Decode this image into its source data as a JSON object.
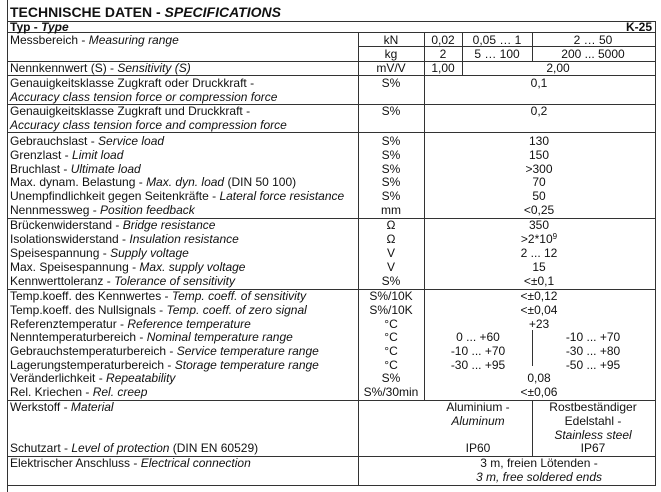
{
  "title": {
    "de": "TECHNISCHE DATEN - ",
    "en": "SPECIFICATIONS"
  },
  "type_row": {
    "de": "Typ - ",
    "en": "Type",
    "model": "K-25"
  },
  "measuring_range": {
    "de": "Messbereich - ",
    "en": "Measuring range",
    "unit_kn": "kN",
    "kn_values": [
      "0,02",
      "0,05 … 1",
      "2 … 50"
    ],
    "unit_kg": "kg",
    "kg_values": [
      "2",
      "5 … 100",
      "200 ... 5000"
    ]
  },
  "sensitivity": {
    "de": "Nennkennwert (S) - ",
    "en": "Sensitivity (S)",
    "unit": "mV/V",
    "values": [
      "1,00",
      "2,00"
    ]
  },
  "accuracy": [
    {
      "de": "Genauigkeitsklasse Zugkraft oder Druckkraft -",
      "en": "Accuracy class tension force or compression force",
      "unit": "S%",
      "value": "0,1"
    },
    {
      "de": "Genauigkeitsklasse Zugkraft und Druckkraft -",
      "en": "Accuracy class tension force and compression force",
      "unit": "S%",
      "value": "0,2"
    }
  ],
  "load_group": [
    {
      "de": "Gebrauchslast - ",
      "en": "Service load",
      "unit": "S%",
      "value": "130"
    },
    {
      "de": "Grenzlast - ",
      "en": "Limit load",
      "unit": "S%",
      "value": "150"
    },
    {
      "de": "Bruchlast - ",
      "en": "Ultimate load",
      "unit": "S%",
      "value": ">300"
    },
    {
      "de": "Max. dynam. Belastung - ",
      "en": "Max. dyn. load",
      "extra": " (DIN 50 100)",
      "unit": "S%",
      "value": "70"
    },
    {
      "de": "Unempfindlichkeit gegen Seitenkräfte - ",
      "en": "Lateral force resistance",
      "unit": "S%",
      "value": "50"
    },
    {
      "de": "Nennmessweg - ",
      "en": "Position feedback",
      "unit": "mm",
      "value": "<0,25"
    }
  ],
  "electrical_group": [
    {
      "de": "Brückenwiderstand - ",
      "en": "Bridge resistance",
      "unit": "Ω",
      "value": "350"
    },
    {
      "de": "Isolationswiderstand - ",
      "en": "Insulation resistance",
      "unit": "Ω",
      "value": ">2*10",
      "sup": "9"
    },
    {
      "de": "Speisespannung - ",
      "en": "Supply voltage",
      "unit": "V",
      "value": "2 ... 12"
    },
    {
      "de": "Max. Speisespannung - ",
      "en": "Max. supply voltage",
      "unit": "V",
      "value": "15"
    },
    {
      "de": "Kennwerttoleranz - ",
      "en": "Tolerance of sensitivity",
      "unit": "S%",
      "value": "<±0,1"
    }
  ],
  "temperature_group": [
    {
      "de": "Temp.koeff. des Kennwertes - ",
      "en": "Temp. coeff. of sensitivity",
      "unit": "S%/10K",
      "value": "<±0,12"
    },
    {
      "de": "Temp.koeff. des Nullsignals - ",
      "en": "Temp. coeff. of zero signal",
      "unit": "S%/10K",
      "value": "<±0,04"
    },
    {
      "de": "Referenztemperatur - ",
      "en": "Reference temperature",
      "unit": "°C",
      "value": "+23"
    },
    {
      "de": "Nenntemperaturbereich - ",
      "en": "Nominal temperature range",
      "unit": "°C",
      "values": [
        "0 ... +60",
        "-10 ... +70"
      ]
    },
    {
      "de": "Gebrauchstemperaturbereich - ",
      "en": "Service temperature range",
      "unit": "°C",
      "values": [
        "-10 ... +70",
        "-30 ... +80"
      ]
    },
    {
      "de": "Lagerungstemperaturbereich - ",
      "en": "Storage temperature range",
      "unit": "°C",
      "values": [
        "-30 ... +95",
        "-50 ... +95"
      ]
    },
    {
      "de": "Veränderlichkeit - ",
      "en": "Repeatability",
      "unit": "S%",
      "value": "0,08"
    },
    {
      "de": "Rel. Kriechen - ",
      "en": "Rel. creep",
      "unit": "S%/30min",
      "value": "<±0,06"
    }
  ],
  "material": {
    "de": "Werkstoff - ",
    "en": "Material",
    "col1_de": "Aluminium -",
    "col1_en": "Aluminum",
    "col2_line1": "Rostbeständiger",
    "col2_line2": "Edelstahl -",
    "col2_en": "Stainless steel"
  },
  "protection": {
    "de": "Schutzart - ",
    "en": "Level of protection",
    "extra": " (DIN EN 60529)",
    "values": [
      "IP60",
      "IP67"
    ]
  },
  "connection": {
    "de": "Elektrischer Anschluss - ",
    "en": "Electrical connection",
    "value_de": "3 m, freien Lötenden -",
    "value_en": "3 m, free soldered ends"
  }
}
